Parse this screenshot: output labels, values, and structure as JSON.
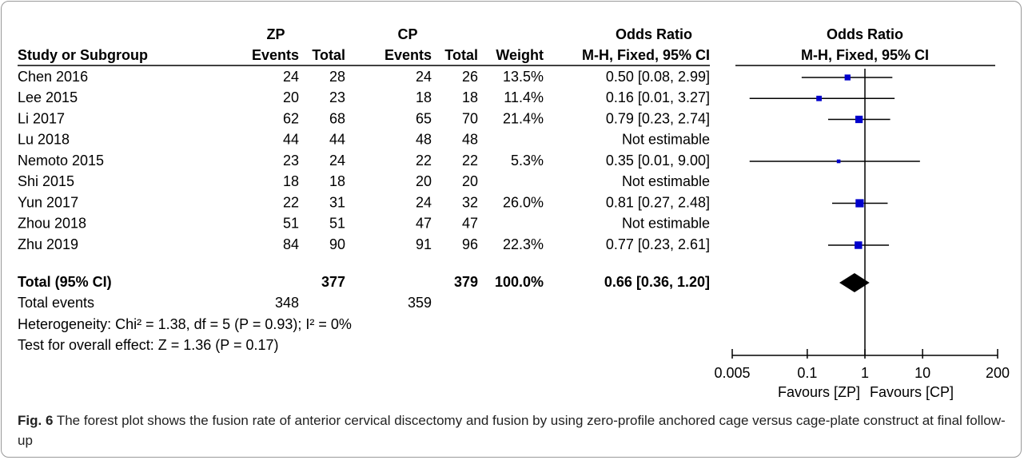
{
  "chart_data": {
    "type": "forest",
    "headers": {
      "group_zp": "ZP",
      "group_cp": "CP",
      "group_or_table": "Odds Ratio",
      "group_or_plot": "Odds Ratio",
      "study": "Study or Subgroup",
      "zp_events": "Events",
      "zp_total": "Total",
      "cp_events": "Events",
      "cp_total": "Total",
      "weight": "Weight",
      "method_table": "M-H, Fixed, 95% CI",
      "method_plot": "M-H, Fixed, 95% CI"
    },
    "studies": [
      {
        "name": "Chen 2016",
        "zp_events": 24,
        "zp_total": 28,
        "cp_events": 24,
        "cp_total": 26,
        "weight": 13.5,
        "weight_label": "13.5%",
        "or": 0.5,
        "ci": [
          0.08,
          2.99
        ],
        "or_label": "0.50 [0.08, 2.99]"
      },
      {
        "name": "Lee 2015",
        "zp_events": 20,
        "zp_total": 23,
        "cp_events": 18,
        "cp_total": 18,
        "weight": 11.4,
        "weight_label": "11.4%",
        "or": 0.16,
        "ci": [
          0.01,
          3.27
        ],
        "or_label": "0.16 [0.01, 3.27]"
      },
      {
        "name": "Li 2017",
        "zp_events": 62,
        "zp_total": 68,
        "cp_events": 65,
        "cp_total": 70,
        "weight": 21.4,
        "weight_label": "21.4%",
        "or": 0.79,
        "ci": [
          0.23,
          2.74
        ],
        "or_label": "0.79 [0.23, 2.74]"
      },
      {
        "name": "Lu 2018",
        "zp_events": 44,
        "zp_total": 44,
        "cp_events": 48,
        "cp_total": 48,
        "weight": null,
        "weight_label": null,
        "or": null,
        "ci": null,
        "or_label": "Not estimable"
      },
      {
        "name": "Nemoto 2015",
        "zp_events": 23,
        "zp_total": 24,
        "cp_events": 22,
        "cp_total": 22,
        "weight": 5.3,
        "weight_label": "5.3%",
        "or": 0.35,
        "ci": [
          0.01,
          9.0
        ],
        "or_label": "0.35 [0.01, 9.00]"
      },
      {
        "name": "Shi 2015",
        "zp_events": 18,
        "zp_total": 18,
        "cp_events": 20,
        "cp_total": 20,
        "weight": null,
        "weight_label": null,
        "or": null,
        "ci": null,
        "or_label": "Not estimable"
      },
      {
        "name": "Yun 2017",
        "zp_events": 22,
        "zp_total": 31,
        "cp_events": 24,
        "cp_total": 32,
        "weight": 26.0,
        "weight_label": "26.0%",
        "or": 0.81,
        "ci": [
          0.27,
          2.48
        ],
        "or_label": "0.81 [0.27, 2.48]"
      },
      {
        "name": "Zhou 2018",
        "zp_events": 51,
        "zp_total": 51,
        "cp_events": 47,
        "cp_total": 47,
        "weight": null,
        "weight_label": null,
        "or": null,
        "ci": null,
        "or_label": "Not estimable"
      },
      {
        "name": "Zhu 2019",
        "zp_events": 84,
        "zp_total": 90,
        "cp_events": 91,
        "cp_total": 96,
        "weight": 22.3,
        "weight_label": "22.3%",
        "or": 0.77,
        "ci": [
          0.23,
          2.61
        ],
        "or_label": "0.77 [0.23, 2.61]"
      }
    ],
    "total": {
      "name": "Total (95% CI)",
      "zp_total": 377,
      "cp_total": 379,
      "weight": 100.0,
      "weight_label": "100.0%",
      "or": 0.66,
      "ci": [
        0.36,
        1.2
      ],
      "or_label": "0.66 [0.36, 1.20]"
    },
    "total_events": {
      "name": "Total events",
      "zp": 348,
      "cp": 359
    },
    "heterogeneity": "Heterogeneity: Chi² = 1.38, df = 5 (P = 0.93); I² = 0%",
    "overall_effect": "Test for overall effect: Z = 1.36 (P = 0.17)",
    "xscale": "log",
    "xlim": [
      0.005,
      200
    ],
    "xticks": [
      0.005,
      0.1,
      1,
      10,
      200
    ],
    "favours_left": "Favours [ZP]",
    "favours_right": "Favours [CP]",
    "marker_color": "#0000cc",
    "caption_label": "Fig. 6",
    "caption_text": "The forest plot shows the fusion rate of anterior cervical discectomy and fusion by using zero-profile anchored cage versus cage-plate construct at final follow-up"
  }
}
